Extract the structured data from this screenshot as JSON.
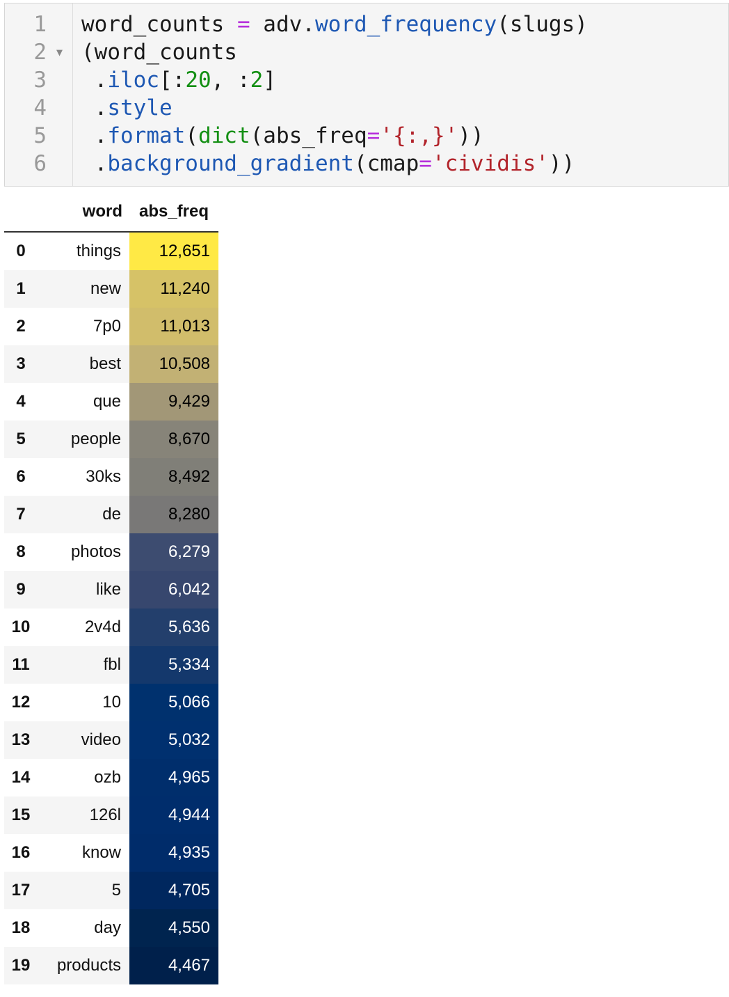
{
  "code_cell": {
    "line_numbers": [
      "1",
      "2",
      "3",
      "4",
      "5",
      "6"
    ],
    "lines": [
      [
        {
          "t": "word_counts ",
          "c": ""
        },
        {
          "t": "=",
          "c": "kw-op"
        },
        {
          "t": " adv.",
          "c": ""
        },
        {
          "t": "word_frequency",
          "c": "kw-fn"
        },
        {
          "t": "(slugs)",
          "c": ""
        }
      ],
      [
        {
          "t": "(word_counts",
          "c": ""
        }
      ],
      [
        {
          "t": " .",
          "c": ""
        },
        {
          "t": "iloc",
          "c": "kw-fn"
        },
        {
          "t": "[:",
          "c": ""
        },
        {
          "t": "20",
          "c": "kw-num"
        },
        {
          "t": ", :",
          "c": ""
        },
        {
          "t": "2",
          "c": "kw-num"
        },
        {
          "t": "]",
          "c": ""
        }
      ],
      [
        {
          "t": " .",
          "c": ""
        },
        {
          "t": "style",
          "c": "kw-fn"
        }
      ],
      [
        {
          "t": " .",
          "c": ""
        },
        {
          "t": "format",
          "c": "kw-fn"
        },
        {
          "t": "(",
          "c": ""
        },
        {
          "t": "dict",
          "c": "kw-builtin"
        },
        {
          "t": "(abs_freq",
          "c": ""
        },
        {
          "t": "=",
          "c": "kw-op"
        },
        {
          "t": "'{:,}'",
          "c": "kw-str"
        },
        {
          "t": "))",
          "c": ""
        }
      ],
      [
        {
          "t": " .",
          "c": ""
        },
        {
          "t": "background_gradient",
          "c": "kw-fn"
        },
        {
          "t": "(cmap",
          "c": ""
        },
        {
          "t": "=",
          "c": "kw-op"
        },
        {
          "t": "'cividis'",
          "c": "kw-str"
        },
        {
          "t": "))",
          "c": ""
        }
      ]
    ]
  },
  "table": {
    "columns": [
      "word",
      "abs_freq"
    ],
    "rows": [
      {
        "index": "0",
        "word": "things",
        "abs_freq": "12,651",
        "bg": "#ffe945",
        "fg": "#000000"
      },
      {
        "index": "1",
        "word": "new",
        "abs_freq": "11,240",
        "bg": "#d6c267",
        "fg": "#000000"
      },
      {
        "index": "2",
        "word": "7p0",
        "abs_freq": "11,013",
        "bg": "#d1bd6b",
        "fg": "#000000"
      },
      {
        "index": "3",
        "word": "best",
        "abs_freq": "10,508",
        "bg": "#c2b174",
        "fg": "#000000"
      },
      {
        "index": "4",
        "word": "que",
        "abs_freq": "9,429",
        "bg": "#a29777",
        "fg": "#000000"
      },
      {
        "index": "5",
        "word": "people",
        "abs_freq": "8,670",
        "bg": "#878479",
        "fg": "#000000"
      },
      {
        "index": "6",
        "word": "30ks",
        "abs_freq": "8,492",
        "bg": "#807f78",
        "fg": "#000000"
      },
      {
        "index": "7",
        "word": "de",
        "abs_freq": "8,280",
        "bg": "#797877",
        "fg": "#000000"
      },
      {
        "index": "8",
        "word": "photos",
        "abs_freq": "6,279",
        "bg": "#3d4c70",
        "fg": "#ffffff"
      },
      {
        "index": "9",
        "word": "like",
        "abs_freq": "6,042",
        "bg": "#37476e",
        "fg": "#ffffff"
      },
      {
        "index": "10",
        "word": "2v4d",
        "abs_freq": "5,636",
        "bg": "#233f6c",
        "fg": "#ffffff"
      },
      {
        "index": "11",
        "word": "fbl",
        "abs_freq": "5,334",
        "bg": "#14386c",
        "fg": "#ffffff"
      },
      {
        "index": "12",
        "word": "10",
        "abs_freq": "5,066",
        "bg": "#00316e",
        "fg": "#ffffff"
      },
      {
        "index": "13",
        "word": "video",
        "abs_freq": "5,032",
        "bg": "#00306f",
        "fg": "#ffffff"
      },
      {
        "index": "14",
        "word": "ozb",
        "abs_freq": "4,965",
        "bg": "#002e6c",
        "fg": "#ffffff"
      },
      {
        "index": "15",
        "word": "126l",
        "abs_freq": "4,944",
        "bg": "#002d6c",
        "fg": "#ffffff"
      },
      {
        "index": "16",
        "word": "know",
        "abs_freq": "4,935",
        "bg": "#002c6a",
        "fg": "#ffffff"
      },
      {
        "index": "17",
        "word": "5",
        "abs_freq": "4,705",
        "bg": "#00275e",
        "fg": "#ffffff"
      },
      {
        "index": "18",
        "word": "day",
        "abs_freq": "4,550",
        "bg": "#00244f",
        "fg": "#ffffff"
      },
      {
        "index": "19",
        "word": "products",
        "abs_freq": "4,467",
        "bg": "#00204b",
        "fg": "#ffffff"
      }
    ]
  }
}
